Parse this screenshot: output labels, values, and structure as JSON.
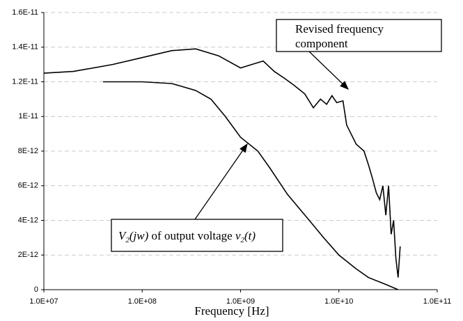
{
  "chart_data": {
    "type": "line",
    "x_label": "Frequency [Hz]",
    "xscale": "log",
    "grid": true,
    "xlim": [
      10000000.0,
      100000000000.0
    ],
    "xticks": [
      {
        "value": 10000000.0,
        "label": "1.0E+07"
      },
      {
        "value": 100000000.0,
        "label": "1.0E+08"
      },
      {
        "value": 1000000000.0,
        "label": "1.0E+09"
      },
      {
        "value": 10000000000.0,
        "label": "1.0E+10"
      },
      {
        "value": 100000000000.0,
        "label": "1.0E+11"
      }
    ],
    "ylim": [
      0,
      1.6e-11
    ],
    "yticks": [
      0,
      {
        "value": 2e-12,
        "label": "2E-12"
      },
      {
        "value": 4e-12,
        "label": "4E-12"
      },
      {
        "value": 6e-12,
        "label": "6E-12"
      },
      {
        "value": 8e-12,
        "label": "8E-12"
      },
      {
        "value": 1e-11,
        "label": "1E-11"
      },
      {
        "value": 1.2e-11,
        "label": "1.2E-11"
      },
      {
        "value": 1.4e-11,
        "label": "1.4E-11"
      },
      {
        "value": 1.6e-11,
        "label": "1.6E-11"
      }
    ],
    "series": [
      {
        "color": "#000000",
        "x": [
          10000000.0,
          20000000.0,
          50000000.0,
          100000000.0,
          200000000.0,
          350000000.0,
          600000000.0,
          1000000000.0,
          1300000000.0,
          1700000000.0,
          2200000000.0,
          2800000000.0,
          3500000000.0,
          4500000000.0,
          5500000000.0,
          6500000000.0,
          7500000000.0,
          8500000000.0,
          9500000000.0,
          11000000000.0,
          12000000000.0,
          15000000000.0,
          18000000000.0,
          20000000000.0,
          22000000000.0,
          24000000000.0,
          26000000000.0,
          28000000000.0,
          30000000000.0,
          32000000000.0,
          34000000000.0,
          36000000000.0,
          38000000000.0,
          40000000000.0,
          42000000000.0
        ],
        "values": [
          1.25e-11,
          1.26e-11,
          1.3e-11,
          1.34e-11,
          1.38e-11,
          1.39e-11,
          1.35e-11,
          1.28e-11,
          1.3e-11,
          1.32e-11,
          1.26e-11,
          1.22e-11,
          1.18e-11,
          1.13e-11,
          1.05e-11,
          1.1e-11,
          1.07e-11,
          1.12e-11,
          1.08e-11,
          1.09e-11,
          9.5e-12,
          8.4e-12,
          8e-12,
          7.2e-12,
          6.4e-12,
          5.6e-12,
          5.2e-12,
          6e-12,
          4.3e-12,
          6e-12,
          3.2e-12,
          4e-12,
          1.8e-12,
          7e-13,
          2.5e-12
        ]
      },
      {
        "color": "#000000",
        "x": [
          40000000.0,
          100000000.0,
          200000000.0,
          350000000.0,
          500000000.0,
          700000000.0,
          1000000000.0,
          1500000000.0,
          2000000000.0,
          3000000000.0,
          5000000000.0,
          7000000000.0,
          10000000000.0,
          15000000000.0,
          20000000000.0,
          30000000000.0,
          40000000000.0
        ],
        "values": [
          1.2e-11,
          1.2e-11,
          1.19e-11,
          1.15e-11,
          1.1e-11,
          1e-11,
          8.8e-12,
          8e-12,
          7e-12,
          5.5e-12,
          4e-12,
          3e-12,
          2e-12,
          1.2e-12,
          7e-13,
          3e-13,
          0
        ]
      }
    ],
    "annotations": [
      {
        "lines": [
          "Revised frequency",
          "component"
        ]
      },
      {
        "segments": [
          {
            "text": "V",
            "italic": true,
            "sub": false
          },
          {
            "text": "2",
            "italic": true,
            "sub": true
          },
          {
            "text": "(jw)",
            "italic": true,
            "sub": false
          },
          {
            "text": " of output voltage ",
            "italic": false,
            "sub": false
          },
          {
            "text": "v",
            "italic": true,
            "sub": false
          },
          {
            "text": "2",
            "italic": true,
            "sub": true
          },
          {
            "text": "(t)",
            "italic": true,
            "sub": false
          }
        ]
      }
    ]
  }
}
